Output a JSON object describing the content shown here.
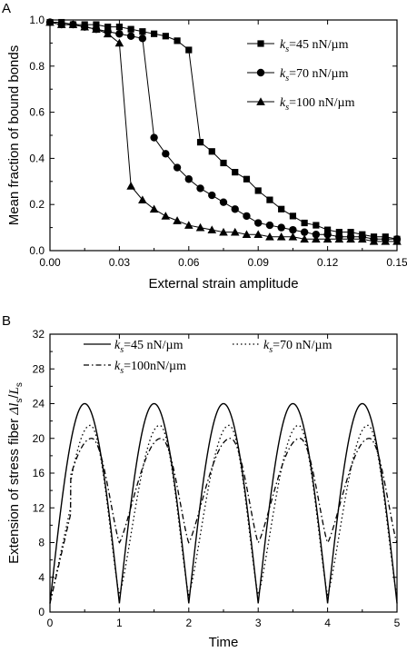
{
  "chart_data": [
    {
      "type": "line",
      "panel_label": "A",
      "xlabel": "External strain amplitude",
      "ylabel": "Mean fraction of bound bonds",
      "xlim": [
        0,
        0.15
      ],
      "ylim": [
        0,
        1.0
      ],
      "xticks": [
        "0.00",
        "0.03",
        "0.06",
        "0.09",
        "0.12",
        "0.15"
      ],
      "yticks": [
        "0.0",
        "0.2",
        "0.4",
        "0.6",
        "0.8",
        "1.0"
      ],
      "legend_position": "top-right",
      "series": [
        {
          "name": "ks=45 nN/µm",
          "name_parts": [
            "k",
            "s",
            "=45 nN/µm"
          ],
          "marker": "square",
          "x": [
            0.0,
            0.005,
            0.01,
            0.015,
            0.02,
            0.025,
            0.03,
            0.035,
            0.04,
            0.045,
            0.05,
            0.055,
            0.06,
            0.065,
            0.07,
            0.075,
            0.08,
            0.085,
            0.09,
            0.095,
            0.1,
            0.105,
            0.11,
            0.115,
            0.12,
            0.125,
            0.13,
            0.135,
            0.14,
            0.145,
            0.15
          ],
          "y": [
            0.99,
            0.99,
            0.98,
            0.98,
            0.98,
            0.97,
            0.97,
            0.96,
            0.95,
            0.94,
            0.93,
            0.91,
            0.87,
            0.47,
            0.43,
            0.38,
            0.34,
            0.31,
            0.26,
            0.22,
            0.18,
            0.15,
            0.12,
            0.11,
            0.09,
            0.08,
            0.08,
            0.07,
            0.06,
            0.06,
            0.05
          ]
        },
        {
          "name": "ks=70 nN/µm",
          "name_parts": [
            "k",
            "s",
            "=70 nN/µm"
          ],
          "marker": "circle",
          "x": [
            0.0,
            0.005,
            0.01,
            0.015,
            0.02,
            0.025,
            0.03,
            0.035,
            0.04,
            0.045,
            0.05,
            0.055,
            0.06,
            0.065,
            0.07,
            0.075,
            0.08,
            0.085,
            0.09,
            0.095,
            0.1,
            0.105,
            0.11,
            0.115,
            0.12,
            0.125,
            0.13,
            0.135,
            0.14,
            0.145,
            0.15
          ],
          "y": [
            0.99,
            0.98,
            0.98,
            0.97,
            0.96,
            0.95,
            0.94,
            0.93,
            0.92,
            0.49,
            0.42,
            0.36,
            0.31,
            0.27,
            0.24,
            0.21,
            0.18,
            0.15,
            0.12,
            0.11,
            0.1,
            0.09,
            0.08,
            0.07,
            0.07,
            0.06,
            0.06,
            0.06,
            0.05,
            0.05,
            0.05
          ]
        },
        {
          "name": "ks=100 nN/µm",
          "name_parts": [
            "k",
            "s",
            "=100 nN/µm"
          ],
          "marker": "triangle",
          "x": [
            0.0,
            0.005,
            0.01,
            0.015,
            0.02,
            0.025,
            0.03,
            0.035,
            0.04,
            0.045,
            0.05,
            0.055,
            0.06,
            0.065,
            0.07,
            0.075,
            0.08,
            0.085,
            0.09,
            0.095,
            0.1,
            0.105,
            0.11,
            0.115,
            0.12,
            0.125,
            0.13,
            0.135,
            0.14,
            0.145,
            0.15
          ],
          "y": [
            0.99,
            0.98,
            0.98,
            0.97,
            0.96,
            0.94,
            0.9,
            0.28,
            0.22,
            0.18,
            0.15,
            0.13,
            0.11,
            0.1,
            0.09,
            0.08,
            0.08,
            0.07,
            0.07,
            0.06,
            0.06,
            0.06,
            0.05,
            0.05,
            0.05,
            0.05,
            0.05,
            0.05,
            0.04,
            0.04,
            0.04
          ]
        }
      ]
    },
    {
      "type": "line",
      "panel_label": "B",
      "xlabel": "Time",
      "ylabel_parts": [
        "Extension of stress fiber ",
        "Δl",
        "s",
        "/",
        "L",
        "s"
      ],
      "xlim": [
        0,
        5
      ],
      "ylim": [
        0,
        32
      ],
      "xticks": [
        "0",
        "1",
        "2",
        "3",
        "4",
        "5"
      ],
      "yticks": [
        "0",
        "4",
        "8",
        "12",
        "16",
        "20",
        "24",
        "28",
        "32"
      ],
      "legend_position": "top",
      "series": [
        {
          "name": "ks=45 nN/µm",
          "name_parts": [
            "k",
            "s",
            "=45 nN/µm"
          ],
          "line_style": "solid",
          "period": 1,
          "peak_value": 24,
          "trough_value": 1,
          "peak_at": 0.5
        },
        {
          "name": "ks=70 nN/µm",
          "name_parts": [
            "k",
            "s",
            "=70 nN/µm"
          ],
          "line_style": "dotted",
          "period": 1,
          "peak_value": 21.5,
          "trough_value": 2,
          "peak_at": 0.58
        },
        {
          "name": "ks=100nN/µm",
          "name_parts": [
            "k",
            "s",
            "=100nN/µm"
          ],
          "line_style": "dash-dot",
          "period": 1,
          "peak_value": 20,
          "trough_value": 8,
          "peak_at": 0.6
        }
      ]
    }
  ]
}
